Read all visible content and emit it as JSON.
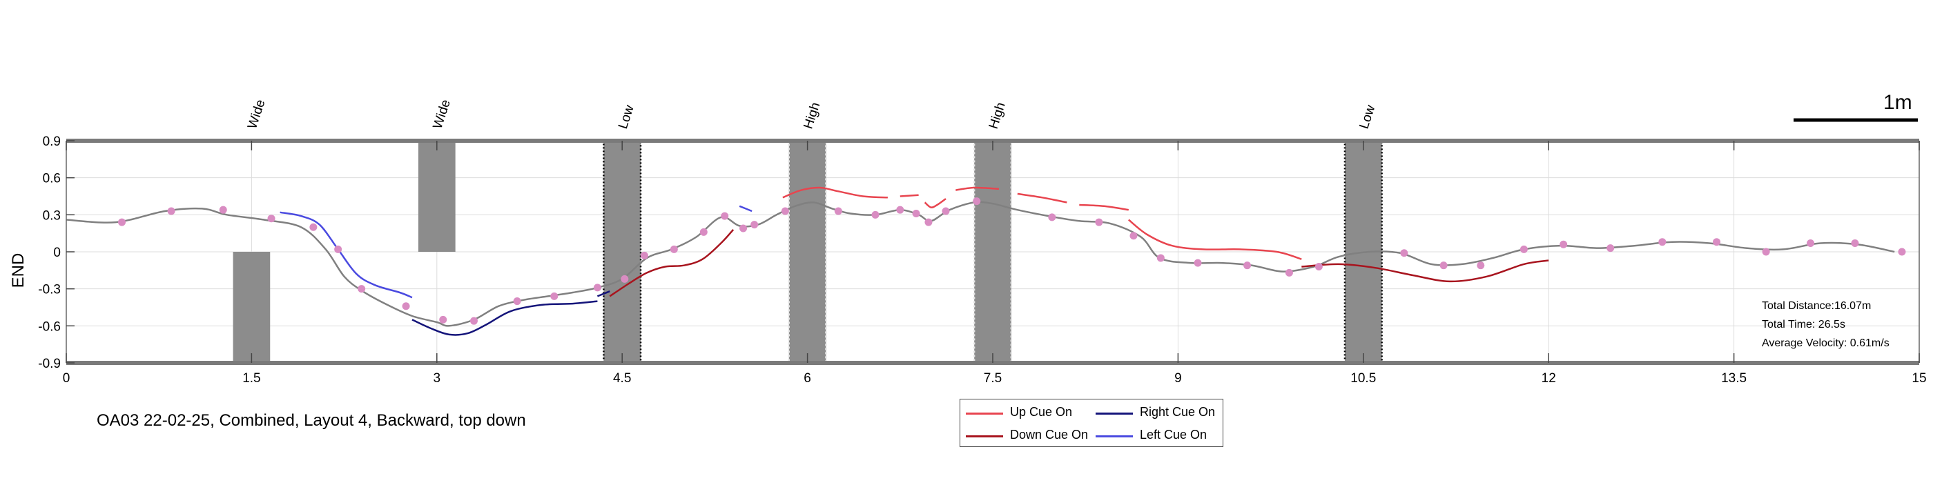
{
  "chart_data": {
    "type": "line",
    "title": "",
    "xlabel": "",
    "ylabel": "END",
    "xlim": [
      0,
      15
    ],
    "ylim": [
      -0.9,
      0.9
    ],
    "xticks": [
      "0",
      "1.5",
      "3",
      "4.5",
      "6",
      "7.5",
      "9",
      "10.5",
      "12",
      "13.5",
      "15"
    ],
    "yticks": [
      "0.9",
      "0.6",
      "0.3",
      "0",
      "-0.3",
      "-0.6",
      "-0.9"
    ],
    "grid": true,
    "legend_position": "bottom-center",
    "obstacles": [
      {
        "label": "Wide",
        "x": [
          1.35,
          1.65
        ],
        "y": [
          -0.9,
          0.0
        ],
        "style": "solid"
      },
      {
        "label": "Wide",
        "x": [
          2.85,
          3.15
        ],
        "y": [
          0.0,
          0.9
        ],
        "style": "solid"
      },
      {
        "label": "Low",
        "x": [
          4.35,
          4.65
        ],
        "y": [
          -0.9,
          0.9
        ],
        "style": "dotted-dark"
      },
      {
        "label": "High",
        "x": [
          5.85,
          6.15
        ],
        "y": [
          -0.9,
          0.9
        ],
        "style": "dotted-light"
      },
      {
        "label": "High",
        "x": [
          7.35,
          7.65
        ],
        "y": [
          -0.9,
          0.9
        ],
        "style": "dotted-light"
      },
      {
        "label": "Low",
        "x": [
          10.35,
          10.65
        ],
        "y": [
          -0.9,
          0.9
        ],
        "style": "dotted-dark"
      }
    ],
    "series": [
      {
        "name": "",
        "color": "#808080",
        "x": [
          0,
          0.4,
          0.8,
          1.1,
          1.3,
          1.6,
          1.9,
          2.1,
          2.25,
          2.4,
          2.6,
          2.8,
          3.0,
          3.1,
          3.3,
          3.5,
          3.7,
          3.9,
          4.1,
          4.3,
          4.5,
          4.7,
          4.9,
          5.1,
          5.3,
          5.45,
          5.6,
          5.75,
          5.9,
          6.05,
          6.2,
          6.35,
          6.55,
          6.75,
          6.9,
          7.0,
          7.15,
          7.35,
          7.5,
          7.7,
          7.95,
          8.2,
          8.45,
          8.7,
          8.85,
          9.1,
          9.35,
          9.6,
          9.85,
          10.1,
          10.3,
          10.55,
          10.8,
          11.05,
          11.3,
          11.55,
          11.8,
          12.1,
          12.4,
          12.7,
          13.0,
          13.3,
          13.6,
          13.9,
          14.2,
          14.5,
          14.8
        ],
        "values": [
          0.26,
          0.24,
          0.33,
          0.35,
          0.3,
          0.26,
          0.2,
          0.02,
          -0.2,
          -0.32,
          -0.43,
          -0.52,
          -0.57,
          -0.6,
          -0.55,
          -0.44,
          -0.39,
          -0.36,
          -0.33,
          -0.29,
          -0.22,
          -0.05,
          0.02,
          0.12,
          0.28,
          0.21,
          0.22,
          0.3,
          0.37,
          0.4,
          0.35,
          0.31,
          0.3,
          0.34,
          0.3,
          0.25,
          0.34,
          0.4,
          0.39,
          0.34,
          0.29,
          0.25,
          0.23,
          0.12,
          -0.05,
          -0.09,
          -0.09,
          -0.11,
          -0.16,
          -0.12,
          -0.04,
          0.0,
          -0.01,
          -0.1,
          -0.1,
          -0.05,
          0.02,
          0.05,
          0.03,
          0.05,
          0.08,
          0.07,
          0.03,
          0.02,
          0.07,
          0.06,
          0.0
        ]
      },
      {
        "name": "Up Cue On",
        "color": "#e8454f",
        "segments": [
          {
            "x": [
              5.8,
              5.95,
              6.1,
              6.25,
              6.45,
              6.65
            ],
            "values": [
              0.44,
              0.5,
              0.52,
              0.49,
              0.45,
              0.44
            ]
          },
          {
            "x": [
              6.75,
              6.9
            ],
            "values": [
              0.45,
              0.46
            ]
          },
          {
            "x": [
              6.95,
              7.0,
              7.05,
              7.12
            ],
            "values": [
              0.4,
              0.36,
              0.38,
              0.43
            ]
          },
          {
            "x": [
              7.2,
              7.35,
              7.55
            ],
            "values": [
              0.5,
              0.52,
              0.51
            ]
          },
          {
            "x": [
              7.7,
              7.9,
              8.1
            ],
            "values": [
              0.47,
              0.44,
              0.4
            ]
          },
          {
            "x": [
              8.2,
              8.4,
              8.6
            ],
            "values": [
              0.38,
              0.37,
              0.34
            ]
          },
          {
            "x": [
              8.6,
              8.75,
              8.95,
              9.2,
              9.5,
              9.8,
              10.0
            ],
            "values": [
              0.26,
              0.14,
              0.05,
              0.02,
              0.02,
              0.0,
              -0.06
            ]
          }
        ]
      },
      {
        "name": "Down Cue On",
        "color": "#a8141e",
        "segments": [
          {
            "x": [
              4.4,
              4.55,
              4.7,
              4.85,
              5.0,
              5.15,
              5.3,
              5.4
            ],
            "values": [
              -0.36,
              -0.26,
              -0.17,
              -0.12,
              -0.11,
              -0.06,
              0.07,
              0.18
            ]
          },
          {
            "x": [
              10.0,
              10.3,
              10.6,
              10.9,
              11.2,
              11.5,
              11.8,
              12.0
            ],
            "values": [
              -0.12,
              -0.1,
              -0.13,
              -0.19,
              -0.24,
              -0.2,
              -0.1,
              -0.07
            ]
          }
        ]
      },
      {
        "name": "Right Cue On",
        "color": "#14147a",
        "segments": [
          {
            "x": [
              2.8,
              2.95,
              3.1,
              3.25,
              3.4,
              3.6,
              3.85,
              4.1,
              4.3
            ],
            "values": [
              -0.55,
              -0.62,
              -0.67,
              -0.66,
              -0.59,
              -0.48,
              -0.43,
              -0.42,
              -0.4
            ]
          },
          {
            "x": [
              4.3,
              4.4
            ],
            "values": [
              -0.36,
              -0.32
            ]
          }
        ]
      },
      {
        "name": "Left Cue On",
        "color": "#4a4ae0",
        "segments": [
          {
            "x": [
              1.73,
              1.9,
              2.05,
              2.2,
              2.35,
              2.5,
              2.7,
              2.8
            ],
            "values": [
              0.32,
              0.29,
              0.22,
              0.02,
              -0.18,
              -0.27,
              -0.33,
              -0.37
            ]
          },
          {
            "x": [
              5.45,
              5.55
            ],
            "values": [
              0.37,
              0.33
            ]
          }
        ]
      }
    ],
    "markers": {
      "color": "#d98cc2",
      "x": [
        0.45,
        0.85,
        1.27,
        1.66,
        2.0,
        2.2,
        2.39,
        2.75,
        3.05,
        3.3,
        3.65,
        3.95,
        4.3,
        4.52,
        4.68,
        4.92,
        5.16,
        5.33,
        5.48,
        5.57,
        5.82,
        6.25,
        6.55,
        6.75,
        6.88,
        6.98,
        7.12,
        7.37,
        7.98,
        8.36,
        8.64,
        8.86,
        9.16,
        9.56,
        9.9,
        10.14,
        10.83,
        11.15,
        11.45,
        11.8,
        12.12,
        12.5,
        12.92,
        13.36,
        13.76,
        14.12,
        14.48,
        14.86
      ],
      "values": [
        0.24,
        0.33,
        0.34,
        0.27,
        0.2,
        0.02,
        -0.3,
        -0.44,
        -0.55,
        -0.56,
        -0.4,
        -0.36,
        -0.29,
        -0.22,
        -0.03,
        0.02,
        0.16,
        0.29,
        0.19,
        0.22,
        0.33,
        0.33,
        0.3,
        0.34,
        0.31,
        0.24,
        0.33,
        0.41,
        0.28,
        0.24,
        0.13,
        -0.05,
        -0.09,
        -0.11,
        -0.17,
        -0.12,
        -0.01,
        -0.11,
        -0.11,
        0.02,
        0.06,
        0.03,
        0.08,
        0.08,
        0.0,
        0.07,
        0.07,
        0.0
      ]
    }
  },
  "caption": "OA03 22-02-25, Combined, Layout 4, Backward, top down",
  "scale_bar": {
    "label": "1m"
  },
  "stats": {
    "distance": "Total Distance:16.07m",
    "time": "Total Time: 26.5s",
    "velocity": "Average Velocity: 0.61m/s"
  },
  "legend": {
    "up": "Up Cue On",
    "down": "Down Cue On",
    "right": "Right Cue On",
    "left": "Left Cue On"
  }
}
